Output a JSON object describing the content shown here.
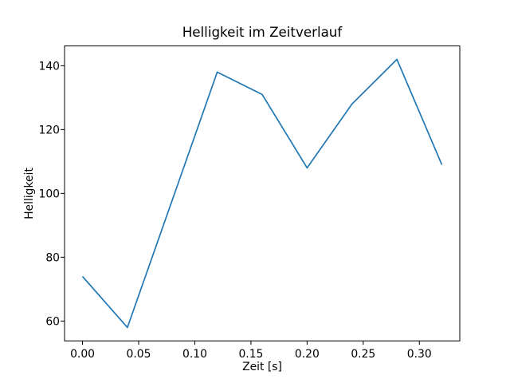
{
  "chart_data": {
    "type": "line",
    "title": "Helligkeit im Zeitverlauf",
    "xlabel": "Zeit [s]",
    "ylabel": "Helligkeit",
    "x": [
      0.0,
      0.04,
      0.08,
      0.12,
      0.16,
      0.2,
      0.24,
      0.28,
      0.32
    ],
    "y": [
      74,
      58,
      98,
      138,
      131,
      108,
      128,
      142,
      109
    ],
    "xlim": [
      -0.016,
      0.336
    ],
    "ylim": [
      53.8,
      146.2
    ],
    "x_ticks": [
      0.0,
      0.05,
      0.1,
      0.15,
      0.2,
      0.25,
      0.3
    ],
    "x_tick_labels": [
      "0.00",
      "0.05",
      "0.10",
      "0.15",
      "0.20",
      "0.25",
      "0.30"
    ],
    "y_ticks": [
      60,
      80,
      100,
      120,
      140
    ],
    "y_tick_labels": [
      "60",
      "80",
      "100",
      "120",
      "140"
    ],
    "grid": false,
    "legend": null,
    "line_color": "#1f77b4",
    "line_width": 1.7,
    "background_color": "#ffffff"
  }
}
